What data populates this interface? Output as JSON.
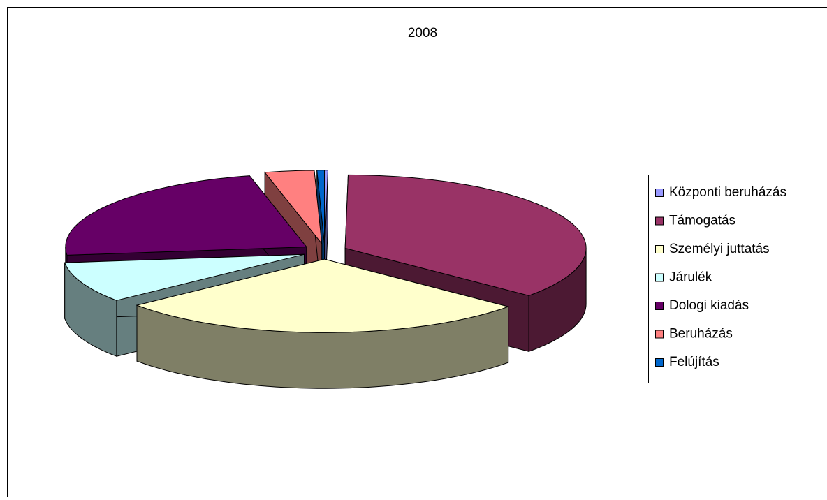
{
  "chart_data": {
    "type": "pie3d",
    "title": "2008",
    "categories": [
      "Központi beruházás",
      "Támogatás",
      "Személyi juttatás",
      "Járulék",
      "Dologi kiadás",
      "Beruházás",
      "Felújítás"
    ],
    "values": [
      0.2,
      36,
      28,
      9,
      23,
      3.3,
      0.5
    ],
    "colors": [
      "#9999ff",
      "#993366",
      "#ffffcc",
      "#ccffff",
      "#660066",
      "#ff8080",
      "#0066cc"
    ],
    "legend": "right"
  }
}
